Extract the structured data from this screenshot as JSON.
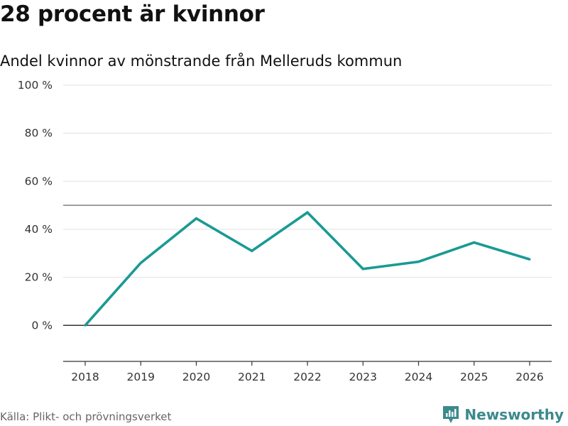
{
  "title": "28 procent är kvinnor",
  "subtitle": "Andel kvinnor av mönstrande från Melleruds kommun",
  "source": "Källa: Plikt- och prövningsverket",
  "brand": "Newsworthy",
  "colors": {
    "line": "#1a9a94",
    "grid": "#e0e0e0",
    "axis": "#333333",
    "reference": "#666666",
    "brand": "#3b8a8c"
  },
  "chart_data": {
    "type": "line",
    "title": "28 procent är kvinnor",
    "subtitle": "Andel kvinnor av mönstrande från Melleruds kommun",
    "xlabel": "",
    "ylabel": "",
    "x": [
      "2018",
      "2019",
      "2020",
      "2021",
      "2022",
      "2023",
      "2024",
      "2025",
      "2026"
    ],
    "series": [
      {
        "name": "Andel kvinnor",
        "values": [
          0,
          26,
          44.5,
          31,
          47,
          23.5,
          26.5,
          34.5,
          27.5
        ]
      }
    ],
    "ylim": [
      -15,
      100
    ],
    "yticks": [
      0,
      20,
      40,
      60,
      80,
      100
    ],
    "ytick_labels": [
      "0 %",
      "20 %",
      "40 %",
      "60 %",
      "80 %",
      "100 %"
    ],
    "reference_line": 50,
    "grid": true
  }
}
